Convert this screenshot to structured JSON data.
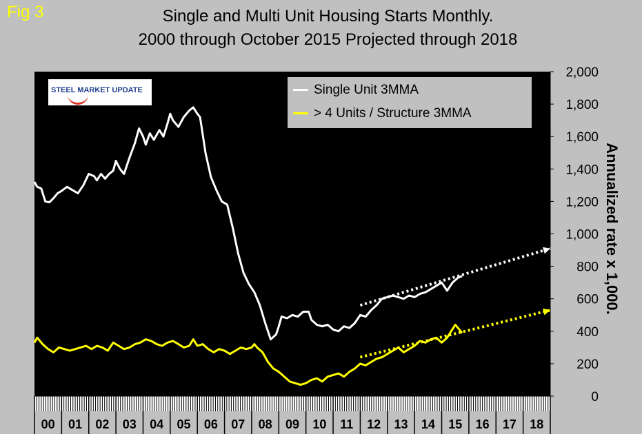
{
  "figure_label": "Fig 3",
  "colors": {
    "background": "#c0c0c0",
    "plot_area": "#000000",
    "single_unit": "#ffffff",
    "multi_unit": "#ffff00",
    "fig_label": "#ffff00"
  },
  "logo": {
    "text": "STEEL MARKET UPDATE"
  },
  "chart_data": {
    "type": "line",
    "title": "Single and Multi Unit Housing Starts Monthly.",
    "subtitle": "2000 through October 2015 Projected through 2018",
    "ylabel": "Annualized rate x 1,000.",
    "xlabel": "",
    "ylim": [
      0,
      2000
    ],
    "y_ticks": [
      "0",
      "200",
      "400",
      "600",
      "800",
      "1,000",
      "1,200",
      "1,400",
      "1,600",
      "1,800",
      "2,000"
    ],
    "y_tick_values": [
      0,
      200,
      400,
      600,
      800,
      1000,
      1200,
      1400,
      1600,
      1800,
      2000
    ],
    "xlim": [
      2000,
      2019
    ],
    "categories": [
      "00",
      "01",
      "02",
      "03",
      "04",
      "05",
      "06",
      "07",
      "08",
      "09",
      "10",
      "11",
      "12",
      "13",
      "14",
      "15",
      "16",
      "17",
      "18"
    ],
    "legend_position": "top-right",
    "grid": false,
    "series": [
      {
        "name": "Single Unit 3MMA",
        "color": "#ffffff",
        "x": [
          2000.0,
          2000.1,
          2000.25,
          2000.4,
          2000.55,
          2000.7,
          2000.85,
          2001.0,
          2001.2,
          2001.4,
          2001.6,
          2001.8,
          2002.0,
          2002.2,
          2002.3,
          2002.45,
          2002.6,
          2002.75,
          2002.9,
          2003.0,
          2003.15,
          2003.3,
          2003.5,
          2003.7,
          2003.85,
          2004.0,
          2004.1,
          2004.25,
          2004.4,
          2004.6,
          2004.75,
          2004.9,
          2005.0,
          2005.1,
          2005.3,
          2005.5,
          2005.7,
          2005.85,
          2006.0,
          2006.1,
          2006.3,
          2006.5,
          2006.7,
          2006.9,
          2007.1,
          2007.3,
          2007.5,
          2007.7,
          2007.9,
          2008.1,
          2008.3,
          2008.5,
          2008.7,
          2008.9,
          2009.0,
          2009.1,
          2009.3,
          2009.5,
          2009.7,
          2009.9,
          2010.1,
          2010.2,
          2010.4,
          2010.6,
          2010.8,
          2011.0,
          2011.2,
          2011.4,
          2011.6,
          2011.8,
          2012.0,
          2012.2,
          2012.4,
          2012.6,
          2012.8,
          2013.0,
          2013.2,
          2013.4,
          2013.6,
          2013.8,
          2014.0,
          2014.2,
          2014.4,
          2014.6,
          2014.8,
          2015.0,
          2015.2,
          2015.4,
          2015.6,
          2015.75
        ],
        "values": [
          1320,
          1290,
          1280,
          1200,
          1195,
          1220,
          1250,
          1265,
          1290,
          1270,
          1250,
          1300,
          1370,
          1355,
          1330,
          1370,
          1340,
          1370,
          1390,
          1450,
          1400,
          1370,
          1470,
          1560,
          1650,
          1600,
          1550,
          1620,
          1580,
          1640,
          1600,
          1680,
          1740,
          1700,
          1660,
          1720,
          1760,
          1780,
          1740,
          1720,
          1500,
          1350,
          1270,
          1200,
          1180,
          1040,
          880,
          760,
          690,
          640,
          560,
          450,
          350,
          380,
          430,
          490,
          480,
          500,
          490,
          520,
          520,
          470,
          440,
          430,
          440,
          410,
          400,
          430,
          420,
          450,
          500,
          490,
          530,
          560,
          600,
          610,
          620,
          610,
          600,
          620,
          610,
          630,
          640,
          660,
          680,
          700,
          650,
          700,
          730,
          740
        ]
      },
      {
        "name": "> 4 Units / Structure 3MMA",
        "color": "#ffff00",
        "x": [
          2000.0,
          2000.1,
          2000.3,
          2000.5,
          2000.7,
          2000.9,
          2001.1,
          2001.3,
          2001.5,
          2001.7,
          2001.9,
          2002.1,
          2002.3,
          2002.5,
          2002.7,
          2002.9,
          2003.1,
          2003.3,
          2003.5,
          2003.7,
          2003.9,
          2004.1,
          2004.3,
          2004.5,
          2004.7,
          2004.9,
          2005.1,
          2005.3,
          2005.5,
          2005.7,
          2005.85,
          2006.0,
          2006.2,
          2006.4,
          2006.6,
          2006.8,
          2007.0,
          2007.2,
          2007.4,
          2007.6,
          2007.8,
          2008.0,
          2008.1,
          2008.2,
          2008.4,
          2008.6,
          2008.8,
          2009.0,
          2009.2,
          2009.4,
          2009.6,
          2009.8,
          2010.0,
          2010.2,
          2010.4,
          2010.6,
          2010.8,
          2011.0,
          2011.2,
          2011.4,
          2011.6,
          2011.8,
          2012.0,
          2012.2,
          2012.4,
          2012.6,
          2012.8,
          2013.0,
          2013.2,
          2013.4,
          2013.6,
          2013.8,
          2014.0,
          2014.2,
          2014.4,
          2014.6,
          2014.8,
          2015.0,
          2015.2,
          2015.35,
          2015.5,
          2015.75
        ],
        "values": [
          330,
          360,
          320,
          290,
          270,
          300,
          290,
          280,
          290,
          300,
          310,
          290,
          310,
          300,
          280,
          330,
          310,
          290,
          300,
          320,
          330,
          350,
          340,
          320,
          310,
          330,
          340,
          320,
          300,
          310,
          350,
          310,
          320,
          290,
          270,
          290,
          280,
          260,
          280,
          300,
          290,
          300,
          320,
          300,
          270,
          210,
          170,
          150,
          120,
          90,
          80,
          70,
          80,
          100,
          110,
          90,
          120,
          130,
          140,
          120,
          150,
          170,
          200,
          190,
          210,
          230,
          240,
          260,
          280,
          300,
          270,
          290,
          310,
          340,
          330,
          350,
          360,
          330,
          360,
          400,
          440,
          390
        ]
      },
      {
        "name": "",
        "color": "#ffffff",
        "projection": true,
        "x": [
          2012.0,
          2019.0
        ],
        "values": [
          560,
          910
        ]
      },
      {
        "name": "",
        "color": "#ffff00",
        "projection": true,
        "x": [
          2012.0,
          2019.0
        ],
        "values": [
          240,
          530
        ]
      }
    ]
  }
}
